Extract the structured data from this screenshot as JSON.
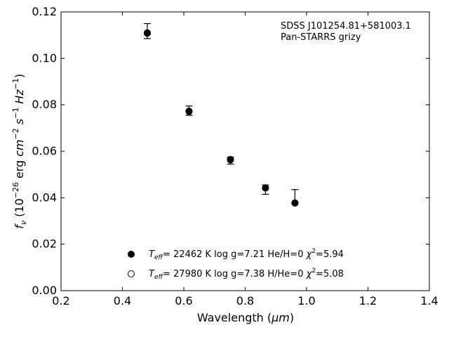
{
  "chart_data": {
    "type": "scatter",
    "title": "",
    "annotation": [
      "SDSS J101254.81+581003.1",
      "Pan-STARRS grizy"
    ],
    "xlabel": {
      "prefix": "Wavelength (",
      "unit": "μm",
      "suffix": ")"
    },
    "ylabel": "f_ν (10^-26 erg cm^-2 s^-1 Hz^-1)",
    "xlim": [
      0.2,
      1.4
    ],
    "ylim": [
      0.0,
      0.12
    ],
    "xticks": [
      0.2,
      0.4,
      0.6,
      0.8,
      1.0,
      1.2,
      1.4
    ],
    "xtick_labels": [
      "0.2",
      "0.4",
      "0.6",
      "0.8",
      "1.0",
      "1.2",
      "1.4"
    ],
    "yticks": [
      0.0,
      0.02,
      0.04,
      0.06,
      0.08,
      0.1,
      0.12
    ],
    "ytick_labels": [
      "0.00",
      "0.02",
      "0.04",
      "0.06",
      "0.08",
      "0.10",
      "0.12"
    ],
    "grid": false,
    "legend_position": "bottom-center",
    "observed": {
      "x": [
        0.481,
        0.617,
        0.752,
        0.866,
        0.962
      ],
      "y_low": [
        0.1085,
        0.0755,
        0.0545,
        0.0415,
        0.038
      ],
      "y_high": [
        0.115,
        0.0795,
        0.0575,
        0.0455,
        0.0435
      ]
    },
    "series": [
      {
        "marker": "filled-circle",
        "x": [
          0.481,
          0.617,
          0.752,
          0.866,
          0.962
        ],
        "y": [
          0.111,
          0.0773,
          0.0565,
          0.0443,
          0.0378
        ],
        "legend": {
          "teff": "22462",
          "logg": "7.21",
          "comp": "He/H=0",
          "chi2": "5.94"
        }
      },
      {
        "marker": "open-circle",
        "x": [
          0.481,
          0.617,
          0.752,
          0.866,
          0.962
        ],
        "y": [
          0.1108,
          0.0771,
          0.0563,
          0.0442,
          0.0377
        ],
        "legend": {
          "teff": "27980",
          "logg": "7.38",
          "comp": "H/He=0",
          "chi2": "5.08"
        }
      }
    ]
  }
}
